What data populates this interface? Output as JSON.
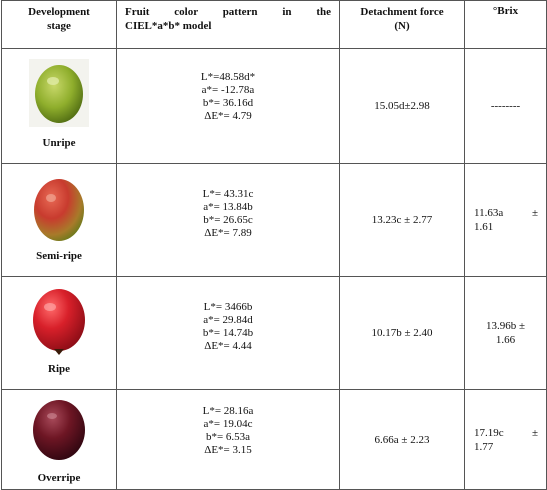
{
  "headers": {
    "stage": "Development stage",
    "color_line1": "Fruit color pattern in the",
    "color_line2": "CIEL*a*b* model",
    "force_line1": "Detachment force",
    "force_line2": "(N)",
    "brix": "°Brix"
  },
  "rows": [
    {
      "stage": "Unripe",
      "L": "L*=48.58d*",
      "a": "a*= -12.78a",
      "b": "b*= 36.16d",
      "dE": "ΔE*= 4.79",
      "force": "15.05d±2.98",
      "brix_a": "--------",
      "brix_b": "",
      "fruit_color": "#8fae2c",
      "fruit_shade": "#4f6b12"
    },
    {
      "stage": "Semi-ripe",
      "L": "L*= 43.31c",
      "a": "a*= 13.84b",
      "b": "b*= 26.65c",
      "dE": "ΔE*= 7.89",
      "force": "13.23c ± 2.77",
      "brix_a": "11.63a",
      "brix_sym": "±",
      "brix_b": "1.61",
      "fruit_color": "#c83b2e",
      "fruit_shade": "#8a9a2a"
    },
    {
      "stage": "Ripe",
      "L": "L*= 3466b",
      "a": "a*= 29.84d",
      "b": "b*= 14.74b",
      "dE": "ΔE*= 4.44",
      "force": "10.17b ± 2.40",
      "brix_a": "13.96b ±",
      "brix_b": "1.66",
      "fruit_color": "#d8202a",
      "fruit_shade": "#8c0d16"
    },
    {
      "stage": "Overripe",
      "L": "L*= 28.16a",
      "a": "a*= 19.04c",
      "b": "b*= 6.53a",
      "dE": "ΔE*= 3.15",
      "force": "6.66a ± 2.23",
      "brix_a": "17.19c",
      "brix_sym": "±",
      "brix_b": "1.77",
      "fruit_color": "#6e1624",
      "fruit_shade": "#2e0610"
    }
  ]
}
